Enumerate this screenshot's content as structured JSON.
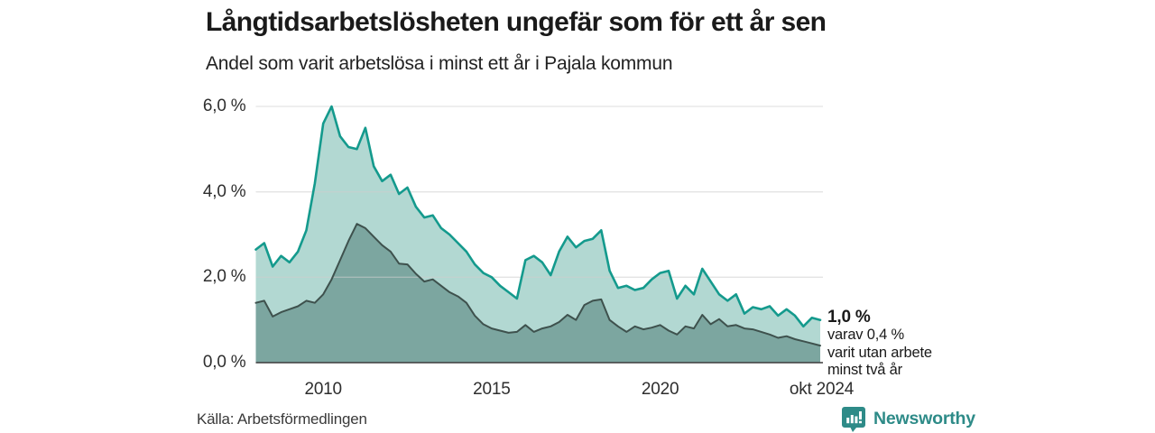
{
  "header": {
    "title": "Långtidsarbetslösheten ungefär som för ett år sen",
    "subtitle": "Andel som varit arbetslösa i minst ett år i Pajala kommun"
  },
  "chart_data": {
    "type": "area",
    "title": "Långtidsarbetslösheten ungefär som för ett år sen",
    "subtitle": "Andel som varit arbetslösa i minst ett år i Pajala kommun",
    "xlabel": "",
    "ylabel": "",
    "x_start": 2008.0,
    "x_step": 0.25,
    "x_end": 2024.75,
    "xlim": [
      2008.0,
      2024.83
    ],
    "ylim": [
      0,
      6
    ],
    "grid": true,
    "legend_position": "none",
    "yticks": [
      {
        "value": 0,
        "label": "0,0 %"
      },
      {
        "value": 2,
        "label": "2,0 %"
      },
      {
        "value": 4,
        "label": "4,0 %"
      },
      {
        "value": 6,
        "label": "6,0 %"
      }
    ],
    "xticks": [
      {
        "year": 2010,
        "label": "2010"
      },
      {
        "year": 2015,
        "label": "2015"
      },
      {
        "year": 2020,
        "label": "2020"
      },
      {
        "year": 2024.79,
        "label": "okt 2024"
      }
    ],
    "series": [
      {
        "name": "Arbetslösa minst ett år",
        "stroke": "#149a8d",
        "fill": "#b2d8d2",
        "stroke_width": 2.6,
        "values": [
          2.65,
          2.8,
          2.25,
          2.5,
          2.35,
          2.6,
          3.1,
          4.2,
          5.6,
          6.0,
          5.3,
          5.05,
          5.0,
          5.5,
          4.6,
          4.25,
          4.4,
          3.95,
          4.1,
          3.65,
          3.4,
          3.45,
          3.15,
          3.0,
          2.8,
          2.6,
          2.3,
          2.1,
          2.0,
          1.8,
          1.65,
          1.5,
          2.4,
          2.5,
          2.35,
          2.05,
          2.6,
          2.95,
          2.7,
          2.85,
          2.9,
          3.1,
          2.15,
          1.75,
          1.8,
          1.7,
          1.75,
          1.95,
          2.1,
          2.15,
          1.5,
          1.8,
          1.6,
          2.2,
          1.9,
          1.6,
          1.45,
          1.6,
          1.15,
          1.3,
          1.25,
          1.32,
          1.1,
          1.25,
          1.1,
          0.85,
          1.05,
          1.0
        ],
        "latest_value": 1.0
      },
      {
        "name": "varav arbetslösa minst två år",
        "stroke": "#3e514d",
        "fill": "#7ca6a0",
        "stroke_width": 2.0,
        "values": [
          1.4,
          1.45,
          1.08,
          1.18,
          1.25,
          1.32,
          1.45,
          1.4,
          1.6,
          1.95,
          2.4,
          2.85,
          3.25,
          3.15,
          2.95,
          2.75,
          2.6,
          2.32,
          2.3,
          2.08,
          1.9,
          1.95,
          1.8,
          1.65,
          1.55,
          1.4,
          1.1,
          0.9,
          0.8,
          0.75,
          0.7,
          0.72,
          0.88,
          0.72,
          0.8,
          0.85,
          0.95,
          1.12,
          1.0,
          1.35,
          1.45,
          1.48,
          1.0,
          0.85,
          0.72,
          0.85,
          0.78,
          0.82,
          0.88,
          0.75,
          0.66,
          0.85,
          0.8,
          1.12,
          0.9,
          1.02,
          0.85,
          0.88,
          0.8,
          0.78,
          0.72,
          0.66,
          0.58,
          0.62,
          0.55,
          0.5,
          0.45,
          0.4
        ],
        "latest_value": 0.4
      }
    ]
  },
  "annotation": {
    "headline": "1,0 %",
    "lines": [
      "varav 0,4 %",
      "varit utan arbete",
      "minst två år"
    ]
  },
  "footer": {
    "source": "Källa: Arbetsförmedlingen",
    "brand": "Newsworthy"
  },
  "colors": {
    "accent_teal": "#149a8d",
    "light_fill": "#b2d8d2",
    "dark_fill": "#7ca6a0",
    "dark_stroke": "#3e514d",
    "gridline": "#cdcdcd",
    "axis_line": "#3c3c3c",
    "brand_teal": "#2e8b88",
    "text": "#1a1a1a"
  }
}
